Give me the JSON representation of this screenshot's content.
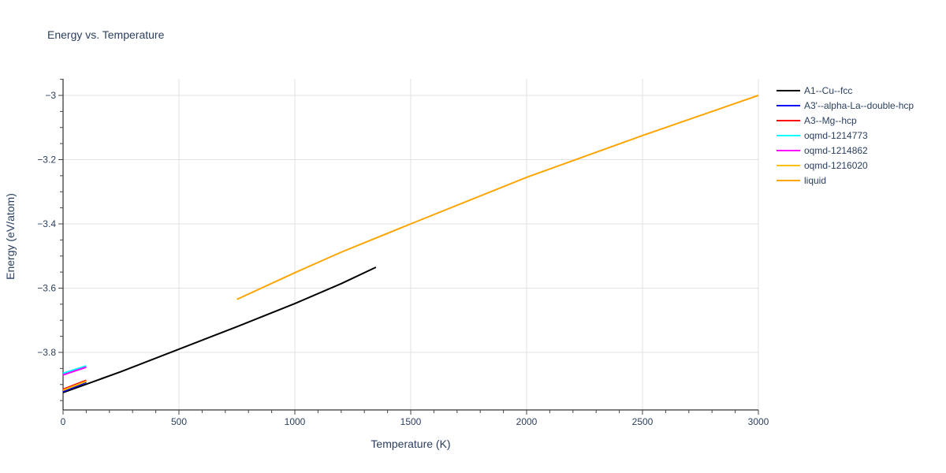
{
  "chart_data": {
    "type": "line",
    "title": "Energy vs. Temperature",
    "xlabel": "Temperature (K)",
    "ylabel": "Energy (eV/atom)",
    "xlim": [
      0,
      3000
    ],
    "ylim": [
      -3.975,
      -2.95
    ],
    "xticks": [
      0,
      500,
      1000,
      1500,
      2000,
      2500,
      3000
    ],
    "yticks": [
      -3.8,
      -3.6,
      -3.4,
      -3.2,
      -3
    ],
    "ytick_labels": [
      "−3.8",
      "−3.6",
      "−3.4",
      "−3.2",
      "−3"
    ],
    "grid": true,
    "legend_position": "right",
    "series": [
      {
        "name": "A1--Cu--fcc",
        "color": "#000000",
        "x": [
          0,
          250,
          500,
          750,
          1000,
          1200,
          1350
        ],
        "y": [
          -3.925,
          -3.86,
          -3.79,
          -3.72,
          -3.648,
          -3.586,
          -3.535
        ]
      },
      {
        "name": "A3'--alpha-La--double-hcp",
        "color": "#0000ff",
        "x": [
          0,
          100
        ],
        "y": [
          -3.922,
          -3.893
        ]
      },
      {
        "name": "A3--Mg--hcp",
        "color": "#ff0000",
        "x": [
          0,
          100
        ],
        "y": [
          -3.915,
          -3.887
        ]
      },
      {
        "name": "oqmd-1214773",
        "color": "#00ffff",
        "x": [
          0,
          100
        ],
        "y": [
          -3.865,
          -3.842
        ]
      },
      {
        "name": "oqmd-1214862",
        "color": "#ff00ff",
        "x": [
          0,
          100
        ],
        "y": [
          -3.87,
          -3.846
        ]
      },
      {
        "name": "oqmd-1216020",
        "color": "#ffc000",
        "x": [
          0,
          100
        ],
        "y": [
          -3.918,
          -3.89
        ]
      },
      {
        "name": "liquid",
        "color": "#ffa500",
        "x": [
          750,
          1000,
          1200,
          1500,
          2000,
          2500,
          3000
        ],
        "y": [
          -3.635,
          -3.552,
          -3.488,
          -3.4,
          -3.255,
          -3.125,
          -3.0
        ]
      }
    ]
  }
}
